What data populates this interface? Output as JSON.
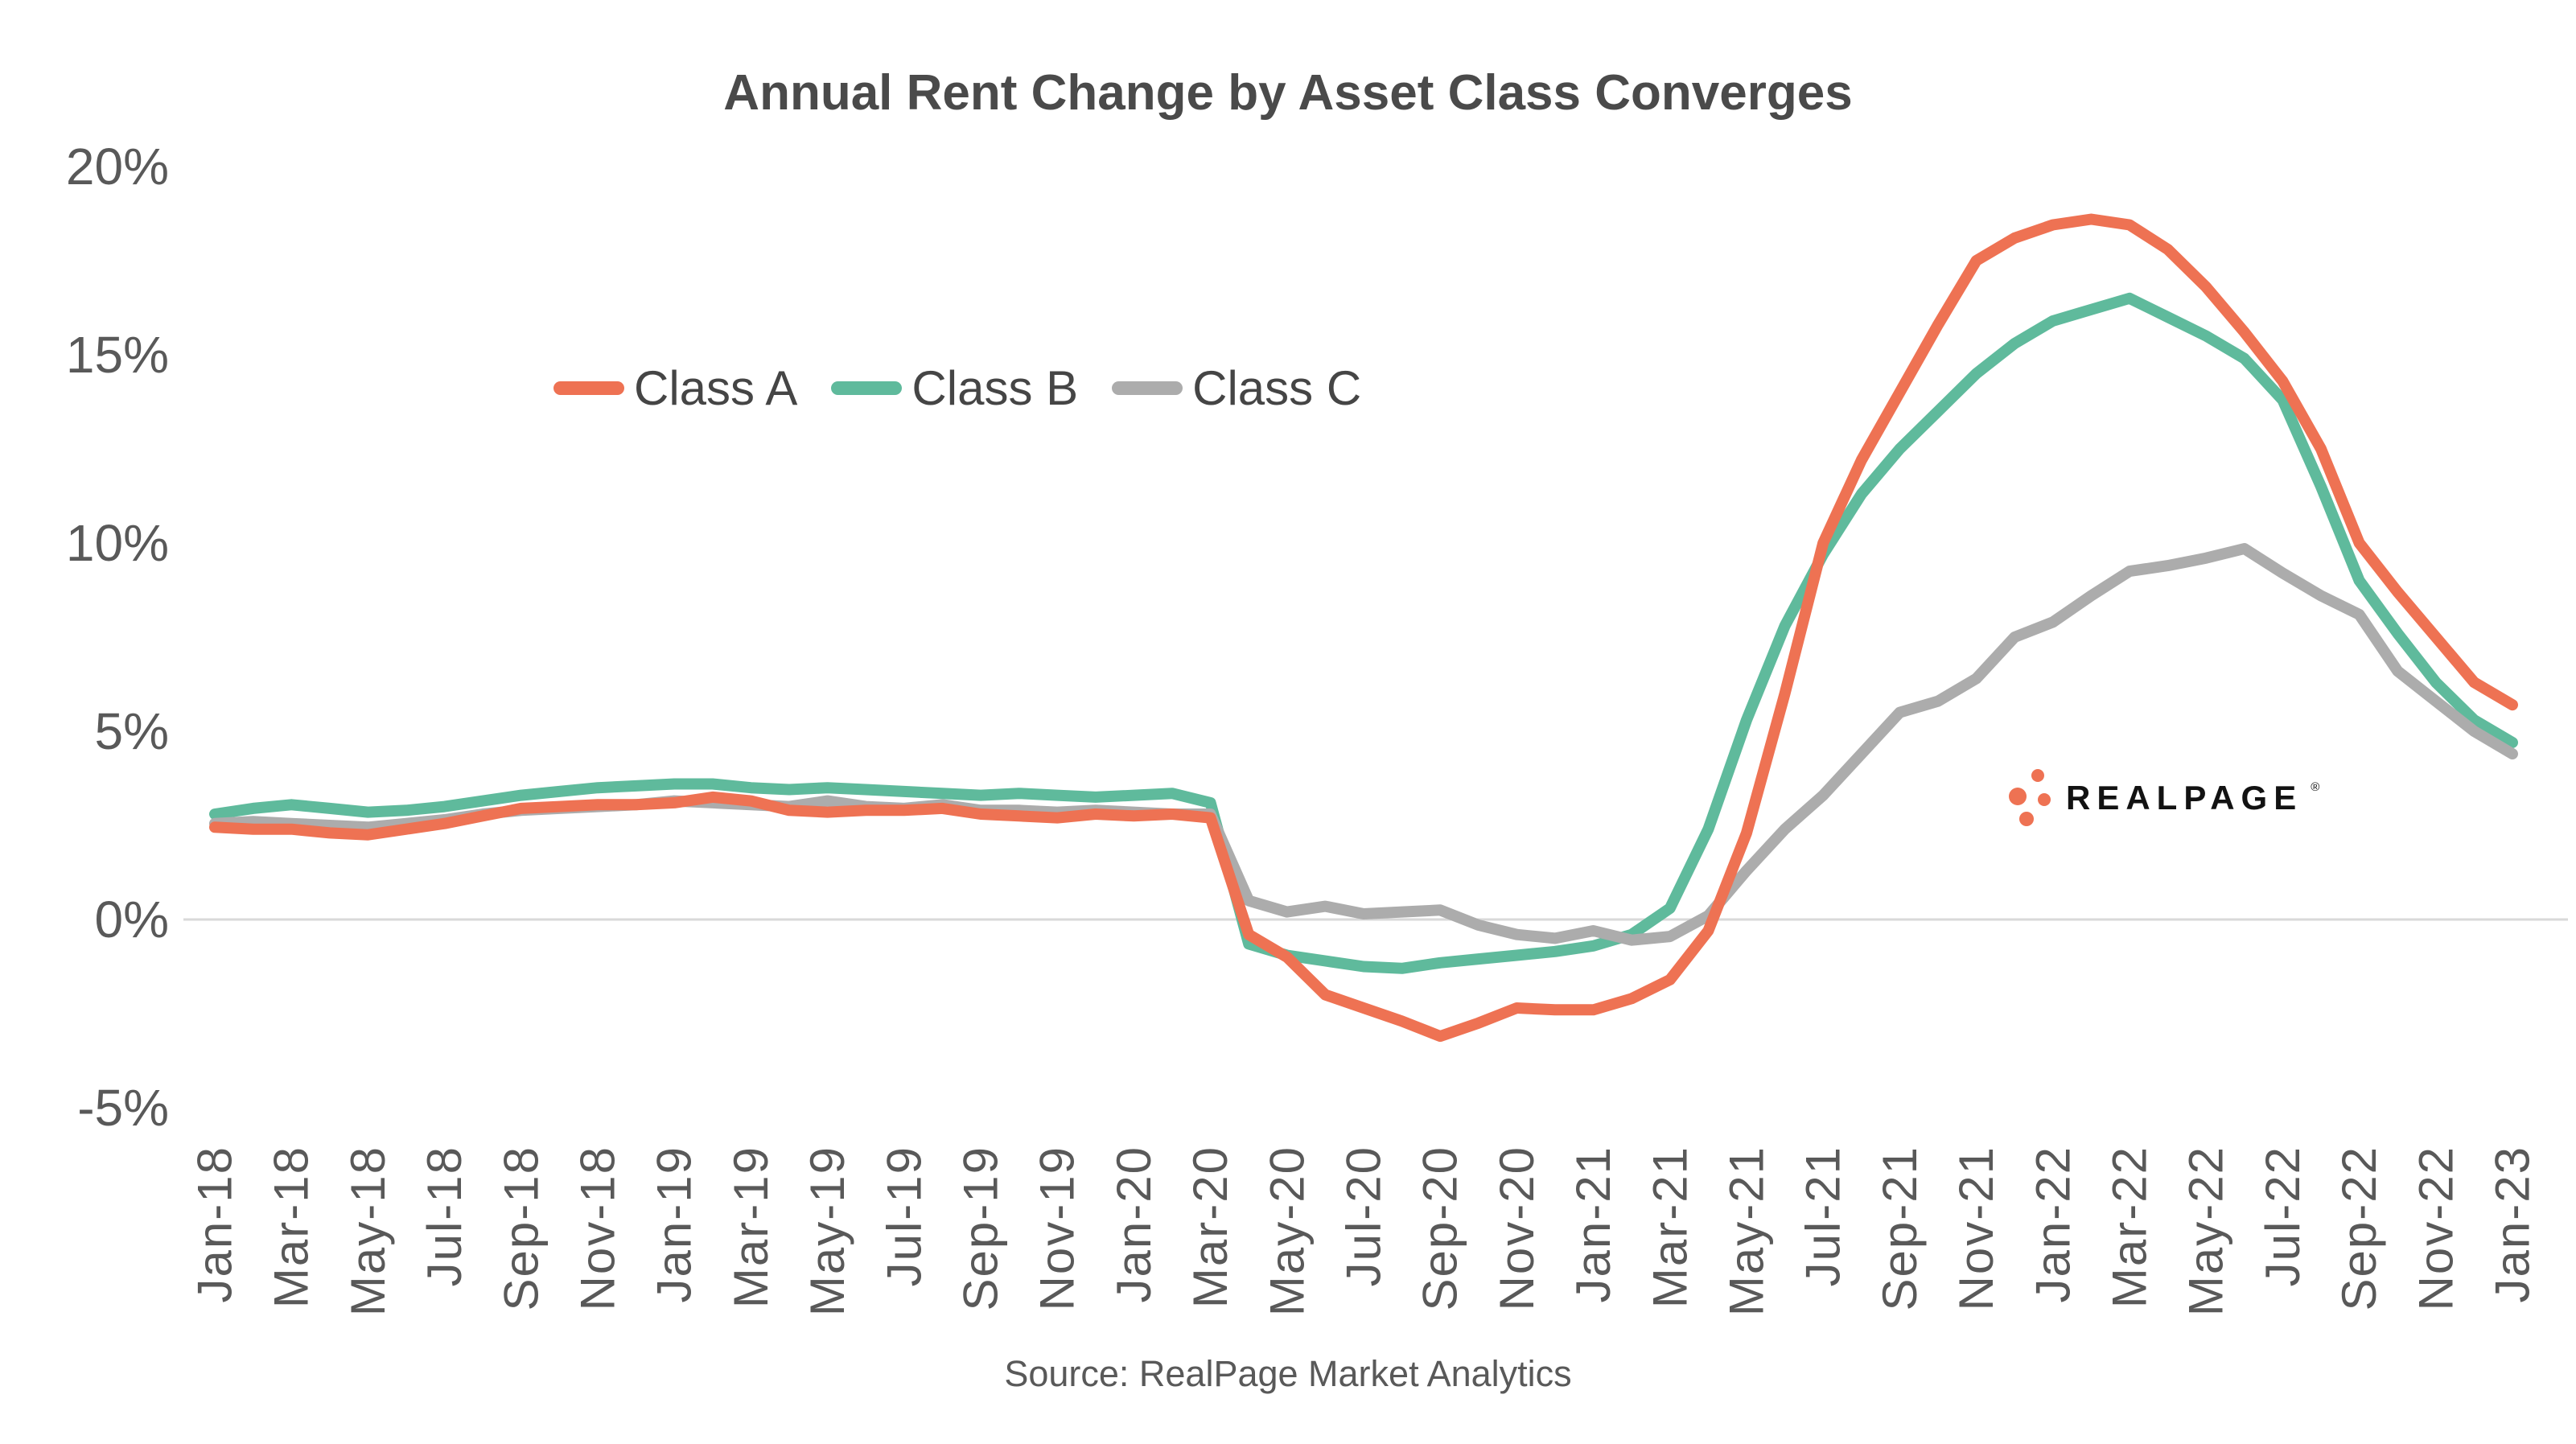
{
  "title": "Annual Rent Change by Asset Class Converges",
  "source": "Source: RealPage Market Analytics",
  "logo": {
    "text": "REALPAGE",
    "registered_mark": "®"
  },
  "colors": {
    "class_a": "#EE7253",
    "class_b": "#5FBA9C",
    "class_c": "#ACACAC",
    "title_text": "#4A4A4A",
    "axis_text": "#595959",
    "gridline": "#D9D9D9",
    "logo_text": "#121212",
    "logo_dots": "#EE7253"
  },
  "legend": {
    "items": [
      {
        "label": "Class A",
        "color": "#EE7253"
      },
      {
        "label": "Class B",
        "color": "#5FBA9C"
      },
      {
        "label": "Class C",
        "color": "#ACACAC"
      }
    ]
  },
  "chart_data": {
    "type": "line",
    "title": "Annual Rent Change by Asset Class Converges",
    "xlabel": "",
    "ylabel": "",
    "ylim": [
      -5,
      20
    ],
    "grid": "horizontal zero line only",
    "legend_position": "upper-left-inside",
    "y_axis": {
      "tick_labels": [
        "20%",
        "15%",
        "10%",
        "5%",
        "0%",
        "-5%"
      ],
      "tick_values": [
        20,
        15,
        10,
        5,
        0,
        -5
      ]
    },
    "x_axis": {
      "tick_every": 2,
      "tick_labels": [
        "Jan-18",
        "Mar-18",
        "May-18",
        "Jul-18",
        "Sep-18",
        "Nov-18",
        "Jan-19",
        "Mar-19",
        "May-19",
        "Jul-19",
        "Sep-19",
        "Nov-19",
        "Jan-20",
        "Mar-20",
        "May-20",
        "Jul-20",
        "Sep-20",
        "Nov-20",
        "Jan-21",
        "Mar-21",
        "May-21",
        "Jul-21",
        "Sep-21",
        "Nov-21",
        "Jan-22",
        "Mar-22",
        "May-22",
        "Jul-22",
        "Sep-22",
        "Nov-22",
        "Jan-23"
      ]
    },
    "x": [
      "Jan-18",
      "Feb-18",
      "Mar-18",
      "Apr-18",
      "May-18",
      "Jun-18",
      "Jul-18",
      "Aug-18",
      "Sep-18",
      "Oct-18",
      "Nov-18",
      "Dec-18",
      "Jan-19",
      "Feb-19",
      "Mar-19",
      "Apr-19",
      "May-19",
      "Jun-19",
      "Jul-19",
      "Aug-19",
      "Sep-19",
      "Oct-19",
      "Nov-19",
      "Dec-19",
      "Jan-20",
      "Feb-20",
      "Mar-20",
      "Apr-20",
      "May-20",
      "Jun-20",
      "Jul-20",
      "Aug-20",
      "Sep-20",
      "Oct-20",
      "Nov-20",
      "Dec-20",
      "Jan-21",
      "Feb-21",
      "Mar-21",
      "Apr-21",
      "May-21",
      "Jun-21",
      "Jul-21",
      "Aug-21",
      "Sep-21",
      "Oct-21",
      "Nov-21",
      "Dec-21",
      "Jan-22",
      "Feb-22",
      "Mar-22",
      "Apr-22",
      "May-22",
      "Jun-22",
      "Jul-22",
      "Aug-22",
      "Sep-22",
      "Oct-22",
      "Nov-22",
      "Dec-22",
      "Jan-23"
    ],
    "series": [
      {
        "name": "Class A",
        "color": "#EE7253",
        "z": 2,
        "values": [
          2.45,
          2.4,
          2.4,
          2.3,
          2.25,
          2.4,
          2.55,
          2.75,
          2.95,
          3.0,
          3.05,
          3.05,
          3.1,
          3.25,
          3.15,
          2.9,
          2.85,
          2.9,
          2.9,
          2.95,
          2.8,
          2.75,
          2.7,
          2.8,
          2.75,
          2.8,
          2.7,
          -0.4,
          -1.0,
          -2.0,
          -2.35,
          -2.7,
          -3.1,
          -2.75,
          -2.35,
          -2.4,
          -2.4,
          -2.1,
          -1.6,
          -0.3,
          2.3,
          6.0,
          10.0,
          12.2,
          14.0,
          15.8,
          17.5,
          18.1,
          18.45,
          18.6,
          18.45,
          17.8,
          16.8,
          15.6,
          14.3,
          12.5,
          10.0,
          8.7,
          7.5,
          6.3,
          5.7
        ]
      },
      {
        "name": "Class B",
        "color": "#5FBA9C",
        "z": 0,
        "values": [
          2.8,
          2.95,
          3.05,
          2.95,
          2.85,
          2.9,
          3.0,
          3.15,
          3.3,
          3.4,
          3.5,
          3.55,
          3.6,
          3.6,
          3.5,
          3.45,
          3.5,
          3.45,
          3.4,
          3.35,
          3.3,
          3.35,
          3.3,
          3.25,
          3.3,
          3.35,
          3.1,
          -0.65,
          -0.95,
          -1.1,
          -1.25,
          -1.3,
          -1.15,
          -1.05,
          -0.95,
          -0.85,
          -0.7,
          -0.4,
          0.3,
          2.4,
          5.3,
          7.8,
          9.7,
          11.3,
          12.5,
          13.5,
          14.5,
          15.3,
          15.9,
          16.2,
          16.5,
          16.0,
          15.5,
          14.9,
          13.8,
          11.5,
          9.0,
          7.6,
          6.3,
          5.3,
          4.7
        ]
      },
      {
        "name": "Class C",
        "color": "#ACACAC",
        "z": 1,
        "values": [
          2.55,
          2.6,
          2.55,
          2.5,
          2.45,
          2.55,
          2.65,
          2.8,
          2.9,
          2.95,
          3.0,
          3.05,
          3.15,
          3.1,
          3.05,
          3.0,
          3.15,
          3.0,
          2.95,
          3.05,
          2.9,
          2.9,
          2.85,
          2.9,
          2.85,
          2.8,
          2.8,
          0.5,
          0.2,
          0.35,
          0.15,
          0.2,
          0.25,
          -0.15,
          -0.4,
          -0.5,
          -0.3,
          -0.55,
          -0.45,
          0.1,
          1.3,
          2.4,
          3.3,
          4.4,
          5.5,
          5.8,
          6.4,
          7.5,
          7.9,
          8.6,
          9.25,
          9.4,
          9.6,
          9.85,
          9.2,
          8.6,
          8.1,
          6.6,
          5.8,
          5.0,
          4.4
        ]
      }
    ]
  }
}
